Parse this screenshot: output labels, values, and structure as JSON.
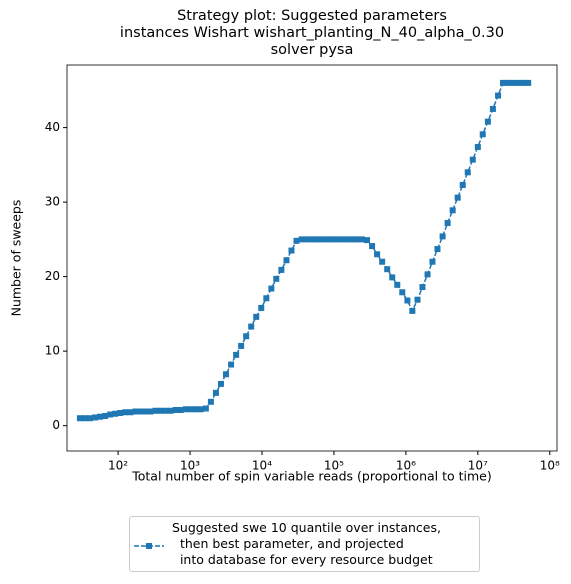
{
  "chart_data": {
    "type": "line",
    "title": "Strategy plot: Suggested parameters\ninstances Wishart wishart_planting_N_40_alpha_0.30\nsolver pysa",
    "xlabel": "Total number of spin variable reads (proportional to time)",
    "ylabel": "Number of sweeps",
    "xscale": "log",
    "xlim": [
      19.5,
      126000000
    ],
    "ylim": [
      -3.4,
      48.4
    ],
    "xticks": [
      {
        "value": 100,
        "label": "10²"
      },
      {
        "value": 1000,
        "label": "10³"
      },
      {
        "value": 10000,
        "label": "10⁴"
      },
      {
        "value": 100000,
        "label": "10⁵"
      },
      {
        "value": 1000000,
        "label": "10⁶"
      },
      {
        "value": 10000000,
        "label": "10⁷"
      },
      {
        "value": 100000000,
        "label": "10⁸"
      }
    ],
    "yticks": [
      0,
      10,
      20,
      30,
      40
    ],
    "x": [
      29.5,
      34.7,
      40.7,
      47.9,
      56.2,
      66.1,
      77.6,
      91.2,
      107,
      126,
      148,
      174,
      204,
      240,
      282,
      331,
      389,
      457,
      537,
      631,
      741,
      871,
      1020,
      1200,
      1410,
      1660,
      1950,
      2290,
      2690,
      3160,
      3720,
      4370,
      5130,
      6030,
      7080,
      8320,
      9770,
      11500,
      13500,
      15800,
      18600,
      21900,
      25700,
      30200,
      35500,
      41700,
      49000,
      57500,
      67600,
      79400,
      93300,
      110000,
      129000,
      151000,
      178000,
      209000,
      245000,
      288000,
      339000,
      398000,
      468000,
      550000,
      646000,
      759000,
      891000,
      1050000,
      1230000,
      1450000,
      1700000,
      2000000,
      2340000,
      2750000,
      3240000,
      3800000,
      4470000,
      5250000,
      6170000,
      7240000,
      8510000,
      10000000,
      11700000,
      13800000,
      16200000,
      19100000,
      22400000,
      26300000,
      30900000,
      36300000,
      42700000,
      50100000
    ],
    "series": [
      {
        "name": "Suggested swe 10 quantile over instances,\n  then best parameter, and projected\n  into database for every resource budget",
        "color": "#1f77b4",
        "values": [
          1.0,
          1.0,
          1.0,
          1.1,
          1.2,
          1.3,
          1.5,
          1.6,
          1.7,
          1.8,
          1.8,
          1.9,
          1.9,
          1.9,
          1.9,
          2.0,
          2.0,
          2.0,
          2.0,
          2.1,
          2.1,
          2.2,
          2.2,
          2.2,
          2.2,
          2.3,
          3.2,
          4.4,
          5.6,
          6.9,
          8.2,
          9.5,
          10.7,
          12.0,
          13.3,
          14.6,
          15.8,
          17.1,
          18.4,
          19.7,
          20.9,
          22.2,
          23.5,
          24.8,
          25,
          25,
          25,
          25,
          25,
          25,
          25,
          25,
          25,
          25,
          25,
          25,
          25,
          24.9,
          24.1,
          23.0,
          22.0,
          21.0,
          19.9,
          18.9,
          17.9,
          16.8,
          15.4,
          16.9,
          18.6,
          20.3,
          22.0,
          23.7,
          25.4,
          27.2,
          28.9,
          30.6,
          32.3,
          34.0,
          35.7,
          37.4,
          39.1,
          40.8,
          42.5,
          44.3,
          46,
          46,
          46,
          46,
          46,
          46
        ]
      }
    ]
  }
}
